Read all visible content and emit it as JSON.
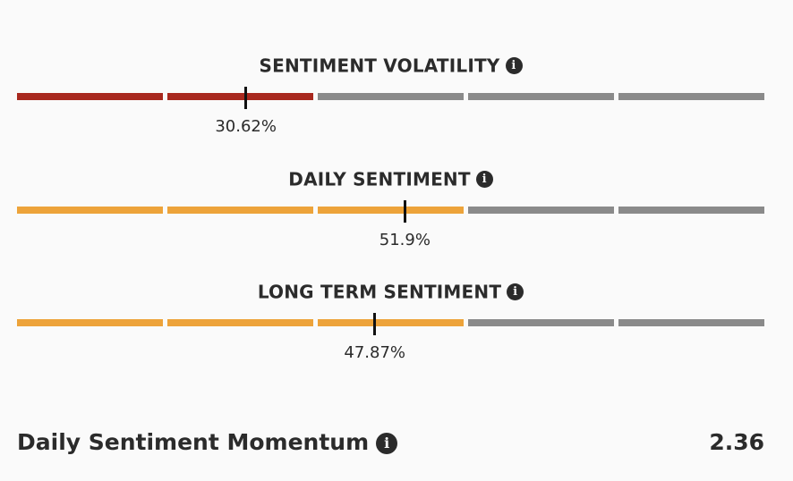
{
  "colors": {
    "red": "#a8281e",
    "orange": "#eda33a",
    "gray": "#8a8a8a"
  },
  "gauges": [
    {
      "title": "SENTIMENT VOLATILITY",
      "value_text": "30.62%",
      "value": 30.62,
      "filled_segments": 2,
      "fill_color": "red"
    },
    {
      "title": "DAILY SENTIMENT",
      "value_text": "51.9%",
      "value": 51.9,
      "filled_segments": 3,
      "fill_color": "orange"
    },
    {
      "title": "LONG TERM SENTIMENT",
      "value_text": "47.87%",
      "value": 47.87,
      "filled_segments": 3,
      "fill_color": "orange"
    }
  ],
  "segments_total": 5,
  "momentum": {
    "label": "Daily Sentiment Momentum",
    "value": "2.36"
  },
  "icons": {
    "info": "i"
  }
}
